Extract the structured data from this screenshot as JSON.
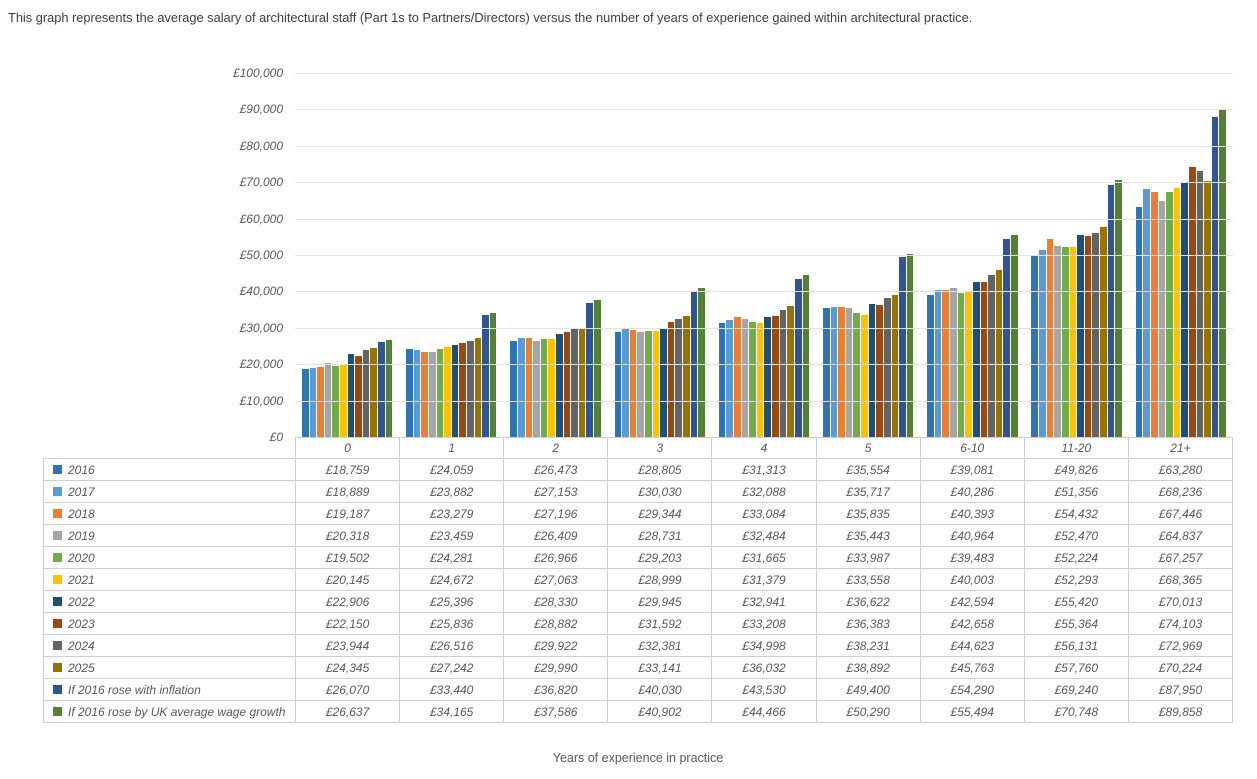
{
  "page": {
    "caption": "This graph represents the average salary of architectural staff (Part 1s to Partners/Directors) versus the number of years of experience gained within architectural practice."
  },
  "chart_data": {
    "type": "bar",
    "title": "This graph represents the average salary of architectural staff (Part 1s to Partners/Directors) versus the number of years of experience gained within architectural practice.",
    "xlabel": "Years of experience in practice",
    "ylabel": "",
    "ylim": [
      0,
      100000
    ],
    "ytick_interval": 10000,
    "ytick_labels": [
      "£0",
      "£10,000",
      "£20,000",
      "£30,000",
      "£40,000",
      "£50,000",
      "£60,000",
      "£70,000",
      "£80,000",
      "£90,000",
      "£100,000"
    ],
    "value_prefix": "£",
    "grid": true,
    "legend_position": "data-table-left-column",
    "text_color": "#595959",
    "gridline_color": "#e4e4e4",
    "table_border_color": "#cfcfcf",
    "categories": [
      "0",
      "1",
      "2",
      "3",
      "4",
      "5",
      "6-10",
      "11-20",
      "21+"
    ],
    "series": [
      {
        "name": "2016",
        "color": "#2E75B6",
        "values": [
          18759,
          24059,
          26473,
          28805,
          31313,
          35554,
          39081,
          49826,
          63280
        ]
      },
      {
        "name": "2017",
        "color": "#5B9BD5",
        "values": [
          18889,
          23882,
          27153,
          30030,
          32088,
          35717,
          40286,
          51356,
          68236
        ]
      },
      {
        "name": "2018",
        "color": "#ED7D31",
        "values": [
          19187,
          23279,
          27196,
          29344,
          33084,
          35835,
          40393,
          54432,
          67446
        ]
      },
      {
        "name": "2019",
        "color": "#A5A5A5",
        "values": [
          20318,
          23459,
          26409,
          28731,
          32484,
          35443,
          40964,
          52470,
          64837
        ]
      },
      {
        "name": "2020",
        "color": "#70AD47",
        "values": [
          19502,
          24281,
          26966,
          29203,
          31665,
          33987,
          39483,
          52224,
          67257
        ]
      },
      {
        "name": "2021",
        "color": "#FFC000",
        "values": [
          20145,
          24672,
          27063,
          28999,
          31379,
          33558,
          40003,
          52293,
          68365
        ]
      },
      {
        "name": "2022",
        "color": "#1F4E79",
        "values": [
          22906,
          25396,
          28330,
          29945,
          32941,
          36622,
          42594,
          55420,
          70013
        ]
      },
      {
        "name": "2023",
        "color": "#9E480E",
        "values": [
          22150,
          25836,
          28882,
          31592,
          33208,
          36383,
          42658,
          55364,
          74103
        ]
      },
      {
        "name": "2024",
        "color": "#636363",
        "values": [
          23944,
          26516,
          29922,
          32381,
          34998,
          38231,
          44623,
          56131,
          72969
        ]
      },
      {
        "name": "2025",
        "color": "#997300",
        "values": [
          24345,
          27242,
          29990,
          33141,
          36032,
          38892,
          45763,
          57760,
          70224
        ]
      },
      {
        "name": "If 2016 rose with inflation",
        "color": "#2F5597",
        "values": [
          26070,
          33440,
          36820,
          40030,
          43530,
          49400,
          54290,
          69240,
          87950
        ]
      },
      {
        "name": "If 2016 rose by UK average wage growth",
        "color": "#548235",
        "values": [
          26637,
          34165,
          37586,
          40902,
          44466,
          50290,
          55494,
          70748,
          89858
        ]
      }
    ]
  }
}
